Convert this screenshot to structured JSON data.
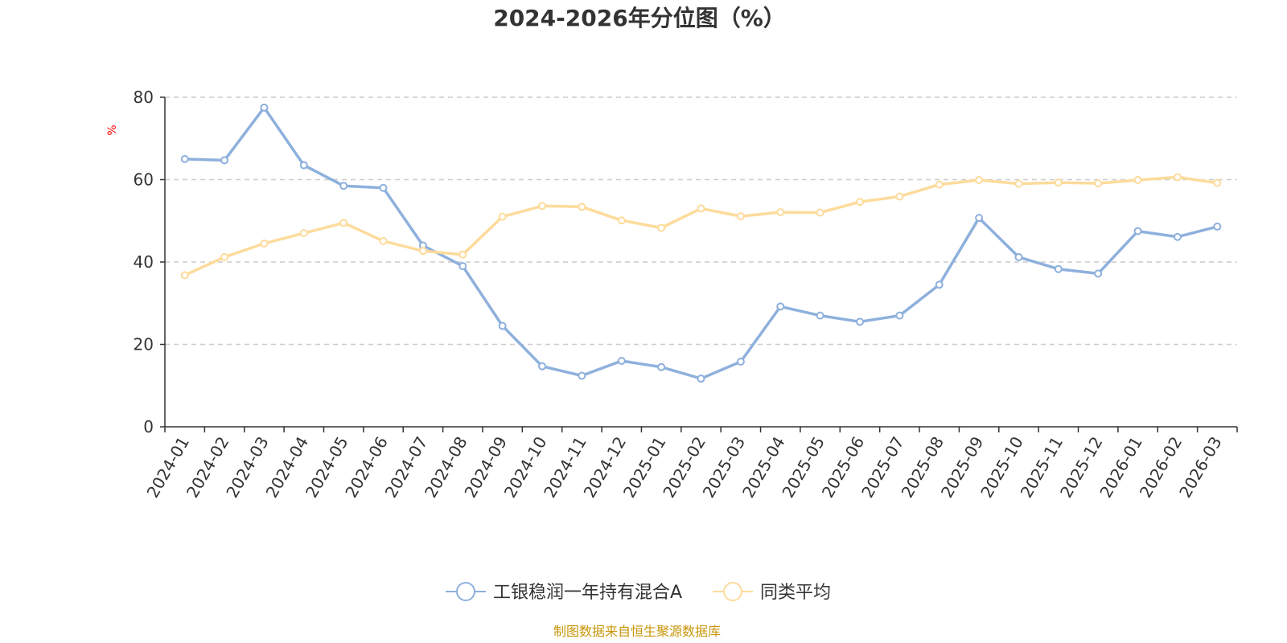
{
  "chart_data": {
    "type": "line",
    "title": "2024-2026年分位图（%）",
    "ylabel": "%",
    "ylim": [
      0,
      80
    ],
    "yticks": [
      0,
      20,
      40,
      60,
      80
    ],
    "grid": true,
    "legend_position": "bottom",
    "categories": [
      "2024-01",
      "2024-02",
      "2024-03",
      "2024-04",
      "2024-05",
      "2024-06",
      "2024-07",
      "2024-08",
      "2024-09",
      "2024-10",
      "2024-11",
      "2024-12",
      "2025-01",
      "2025-02",
      "2025-03",
      "2025-04",
      "2025-05",
      "2025-06",
      "2025-07",
      "2025-08",
      "2025-09",
      "2025-10",
      "2025-11",
      "2025-12",
      "2026-01",
      "2026-02",
      "2026-03"
    ],
    "series": [
      {
        "name": "工银稳润一年持有混合A",
        "color": "#8eb0dc",
        "values": [
          65.0,
          64.7,
          77.5,
          63.5,
          58.5,
          58.0,
          44.0,
          39.0,
          24.5,
          14.7,
          12.4,
          16.0,
          14.5,
          11.7,
          15.8,
          29.2,
          27.0,
          25.5,
          27.0,
          34.5,
          50.7,
          41.2,
          38.3,
          37.2,
          47.5,
          46.1,
          48.6
        ]
      },
      {
        "name": "同类平均",
        "color": "#fddb9b",
        "values": [
          36.8,
          41.2,
          44.5,
          47.0,
          49.5,
          45.1,
          42.7,
          41.8,
          51.0,
          53.6,
          53.4,
          50.1,
          48.3,
          53.0,
          51.1,
          52.1,
          52.0,
          54.6,
          55.9,
          58.8,
          59.9,
          59.0,
          59.3,
          59.1,
          59.9,
          60.6,
          59.2
        ]
      }
    ]
  },
  "footer": {
    "source": "制图数据来自恒生聚源数据库"
  }
}
